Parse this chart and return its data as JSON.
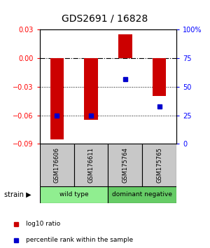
{
  "title": "GDS2691 / 16828",
  "samples": [
    "GSM176606",
    "GSM176611",
    "GSM175764",
    "GSM175765"
  ],
  "log10_ratio": [
    -0.085,
    -0.065,
    0.025,
    -0.04
  ],
  "percentile_rank": [
    25,
    25,
    57,
    33
  ],
  "groups": [
    {
      "label": "wild type",
      "color": "#90EE90",
      "samples": [
        0,
        1
      ]
    },
    {
      "label": "dominant negative",
      "color": "#66CC66",
      "samples": [
        2,
        3
      ]
    }
  ],
  "ylim_left": [
    -0.09,
    0.03
  ],
  "ylim_right": [
    0,
    100
  ],
  "yticks_left": [
    -0.09,
    -0.06,
    -0.03,
    0,
    0.03
  ],
  "yticks_right": [
    0,
    25,
    50,
    75,
    100
  ],
  "bar_color": "#CC0000",
  "dot_color": "#0000CC",
  "bar_width": 0.4,
  "dotted_lines": [
    -0.03,
    -0.06
  ],
  "sample_box_color": "#C8C8C8",
  "legend_items": [
    {
      "label": "log10 ratio",
      "color": "#CC0000"
    },
    {
      "label": "percentile rank within the sample",
      "color": "#0000CC"
    }
  ]
}
